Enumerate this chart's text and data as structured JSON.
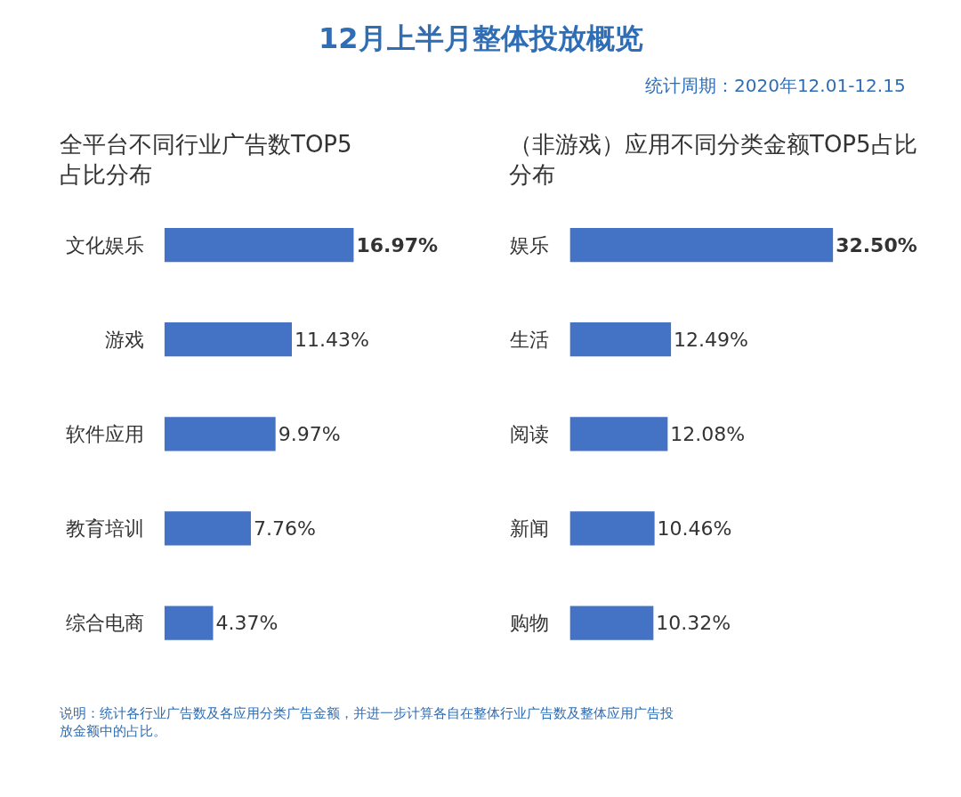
{
  "chart_data": [
    {
      "type": "bar",
      "orientation": "horizontal",
      "title": "全平台不同行业广告数TOP5占比分布",
      "categories": [
        "文化娱乐",
        "游戏",
        "软件应用",
        "教育培训",
        "综合电商"
      ],
      "values": [
        16.97,
        11.43,
        9.97,
        7.76,
        4.37
      ],
      "value_labels": [
        "16.97%",
        "11.43%",
        "9.97%",
        "7.76%",
        "4.37%"
      ],
      "color": "#4472c4",
      "tick_labels": "y",
      "annotations": [
        "12月上半月整体投放概览",
        "统计周期：2020年12.01-12.15",
        "说明：统计各行业广告数及各应用分类广告金额，并进一步计算各自在整体行业广告数及整体应用广告投放金额中的占比。"
      ]
    },
    {
      "type": "bar",
      "orientation": "horizontal",
      "title": "（非游戏）应用不同分类金额TOP5占比分布",
      "categories": [
        "娱乐",
        "生活",
        "阅读",
        "新闻",
        "购物"
      ],
      "values": [
        32.5,
        12.49,
        12.08,
        10.46,
        10.32
      ],
      "value_labels": [
        "32.50%",
        "12.49%",
        "12.08%",
        "10.46%",
        "10.32%"
      ],
      "color": "#4472c4",
      "tick_labels": "y"
    }
  ]
}
